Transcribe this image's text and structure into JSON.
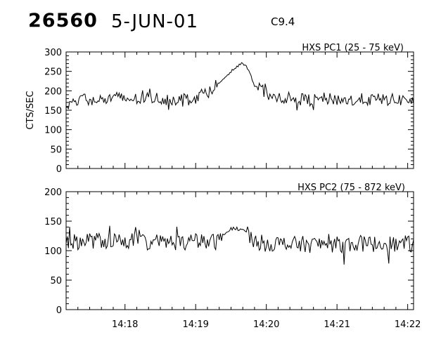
{
  "header": {
    "event_number": "26560",
    "date": "5-JUN-01",
    "goes_class": "C9.4"
  },
  "chart_data": [
    {
      "type": "line",
      "title": "HXS PC1 (25 - 75 keV)",
      "ylabel": "CTS/SEC",
      "xlabel": "",
      "ylim": [
        0,
        300
      ],
      "yticks": [
        0,
        50,
        100,
        150,
        200,
        250,
        300
      ],
      "xlim": [
        "14:17:10",
        "14:22:05"
      ],
      "xticks": [
        "14:18",
        "14:19",
        "14:20",
        "14:21",
        "14:22"
      ],
      "grid": false,
      "series": [
        {
          "x": [
            "14:17:10",
            "14:17:20",
            "14:17:30",
            "14:17:40",
            "14:17:50",
            "14:18:00",
            "14:18:10",
            "14:18:20",
            "14:18:30",
            "14:18:40",
            "14:18:50",
            "14:19:00",
            "14:19:10",
            "14:19:20",
            "14:19:30",
            "14:19:35",
            "14:19:40",
            "14:19:45",
            "14:19:50",
            "14:20:00",
            "14:20:10",
            "14:20:20",
            "14:20:30",
            "14:20:40",
            "14:20:50",
            "14:21:00",
            "14:21:10",
            "14:21:20",
            "14:21:30",
            "14:21:40",
            "14:21:50",
            "14:22:00",
            "14:22:05"
          ],
          "values": [
            165,
            180,
            178,
            175,
            182,
            180,
            178,
            182,
            180,
            178,
            180,
            183,
            200,
            220,
            250,
            262,
            272,
            255,
            215,
            192,
            185,
            180,
            178,
            176,
            180,
            178,
            175,
            178,
            177,
            178,
            176,
            178,
            172
          ]
        }
      ]
    },
    {
      "type": "line",
      "title": "HXS PC2 (75 - 872 keV)",
      "ylabel": "",
      "xlabel": "",
      "ylim": [
        0,
        200
      ],
      "yticks": [
        0,
        50,
        100,
        150,
        200
      ],
      "xlim": [
        "14:17:10",
        "14:22:05"
      ],
      "xticks": [
        "14:18",
        "14:19",
        "14:20",
        "14:21",
        "14:22"
      ],
      "grid": false,
      "series": [
        {
          "x": [
            "14:17:10",
            "14:17:20",
            "14:17:30",
            "14:17:40",
            "14:17:50",
            "14:18:00",
            "14:18:10",
            "14:18:20",
            "14:18:30",
            "14:18:40",
            "14:18:50",
            "14:19:00",
            "14:19:10",
            "14:19:20",
            "14:19:25",
            "14:19:30",
            "14:19:40",
            "14:19:45",
            "14:19:50",
            "14:20:00",
            "14:20:10",
            "14:20:20",
            "14:20:30",
            "14:20:40",
            "14:20:50",
            "14:21:00",
            "14:21:10",
            "14:21:20",
            "14:21:30",
            "14:21:40",
            "14:21:50",
            "14:22:00",
            "14:22:05"
          ],
          "values": [
            112,
            115,
            118,
            116,
            117,
            118,
            115,
            116,
            114,
            115,
            113,
            115,
            114,
            116,
            128,
            138,
            136,
            128,
            115,
            112,
            112,
            110,
            111,
            110,
            112,
            110,
            111,
            112,
            111,
            112,
            110,
            112,
            110
          ]
        }
      ]
    }
  ]
}
